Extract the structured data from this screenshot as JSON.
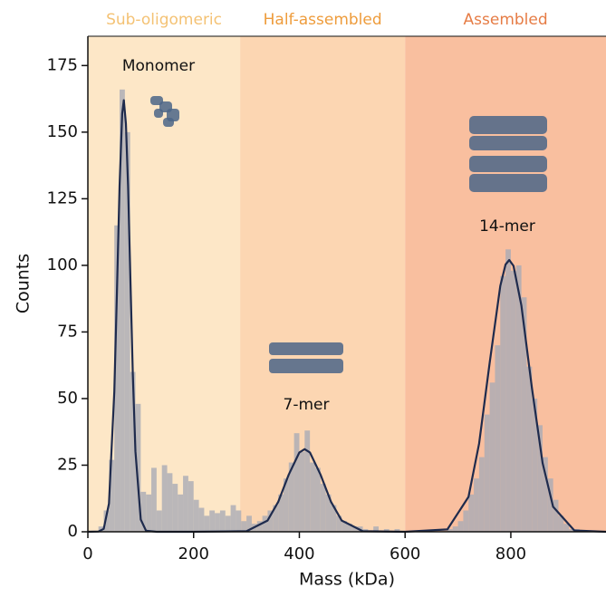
{
  "chart_data": {
    "type": "histogram",
    "x_label": "Mass (kDa)",
    "y_label": "Counts",
    "bins": [
      20,
      30,
      40,
      50,
      60,
      70,
      80,
      90,
      100,
      110,
      120,
      130,
      140,
      150,
      160,
      170,
      180,
      190,
      200,
      210,
      220,
      230,
      240,
      250,
      260,
      270,
      280,
      290,
      300,
      310,
      320,
      330,
      340,
      350,
      360,
      370,
      380,
      390,
      400,
      410,
      420,
      430,
      440,
      450,
      460,
      470,
      480,
      490,
      500,
      510,
      520,
      530,
      540,
      550,
      560,
      570,
      580,
      590,
      600,
      610,
      620,
      630,
      640,
      650,
      660,
      670,
      680,
      690,
      700,
      710,
      720,
      730,
      740,
      750,
      760,
      770,
      780,
      790,
      800,
      810,
      820,
      830,
      840,
      850,
      860,
      870,
      880,
      890,
      900,
      910,
      920,
      930,
      940,
      950,
      960,
      970,
      980
    ],
    "counts": [
      2,
      8,
      27,
      115,
      166,
      150,
      60,
      48,
      15,
      14,
      24,
      8,
      25,
      22,
      18,
      14,
      21,
      19,
      12,
      9,
      6,
      8,
      7,
      8,
      6,
      10,
      8,
      4,
      6,
      3,
      4,
      6,
      8,
      10,
      14,
      20,
      26,
      37,
      30,
      38,
      26,
      24,
      18,
      14,
      10,
      6,
      4,
      3,
      2,
      2,
      1,
      0,
      2,
      0,
      1,
      0,
      1,
      0,
      0,
      0,
      0,
      0,
      0,
      0,
      0,
      0,
      1,
      2,
      4,
      8,
      14,
      20,
      28,
      44,
      56,
      70,
      96,
      106,
      98,
      100,
      88,
      62,
      50,
      40,
      28,
      20,
      12,
      6,
      3,
      1,
      1,
      0,
      0,
      0,
      0,
      0
    ],
    "color": "#a9abb5",
    "fit": {
      "color": "#1f2b4d",
      "x": [
        0,
        20,
        30,
        40,
        50,
        55,
        60,
        65,
        68,
        72,
        76,
        80,
        85,
        90,
        100,
        110,
        130,
        200,
        300,
        340,
        360,
        380,
        400,
        410,
        420,
        440,
        460,
        480,
        520,
        600,
        680,
        720,
        740,
        760,
        780,
        790,
        797,
        805,
        820,
        840,
        860,
        880,
        920,
        980
      ],
      "y": [
        0,
        0.1,
        1.1,
        10.6,
        52.6,
        90.1,
        129.7,
        157,
        162,
        153.2,
        129.7,
        98.3,
        59.4,
        30.2,
        4.6,
        0.4,
        0,
        0,
        0.2,
        4.2,
        11.2,
        21.5,
        29.8,
        31,
        29.8,
        21.5,
        11.2,
        4.2,
        0.2,
        0,
        0.9,
        13.1,
        33.1,
        63.5,
        92.3,
        100.3,
        102,
        99.8,
        84.9,
        53.8,
        25.8,
        9.4,
        0.5,
        0
      ]
    },
    "regions": [
      {
        "label": "Sub-oligomeric",
        "range": [
          0,
          288
        ],
        "color": "#fde7c7",
        "label_color": "#f4c274"
      },
      {
        "label": "Half-assembled",
        "range": [
          288,
          600
        ],
        "color": "#fcd6b2",
        "label_color": "#ee9c3c"
      },
      {
        "label": "Assembled",
        "range": [
          600,
          980
        ],
        "color": "#f9bf9f",
        "label_color": "#e67c45"
      }
    ],
    "annotations": [
      "Monomer",
      "7-mer",
      "14-mer"
    ],
    "xlim": [
      0,
      980
    ],
    "ylim": [
      0,
      186
    ],
    "xticks": [
      0,
      200,
      400,
      600,
      800
    ],
    "yticks": [
      0,
      25,
      50,
      75,
      100,
      125,
      150,
      175
    ]
  }
}
